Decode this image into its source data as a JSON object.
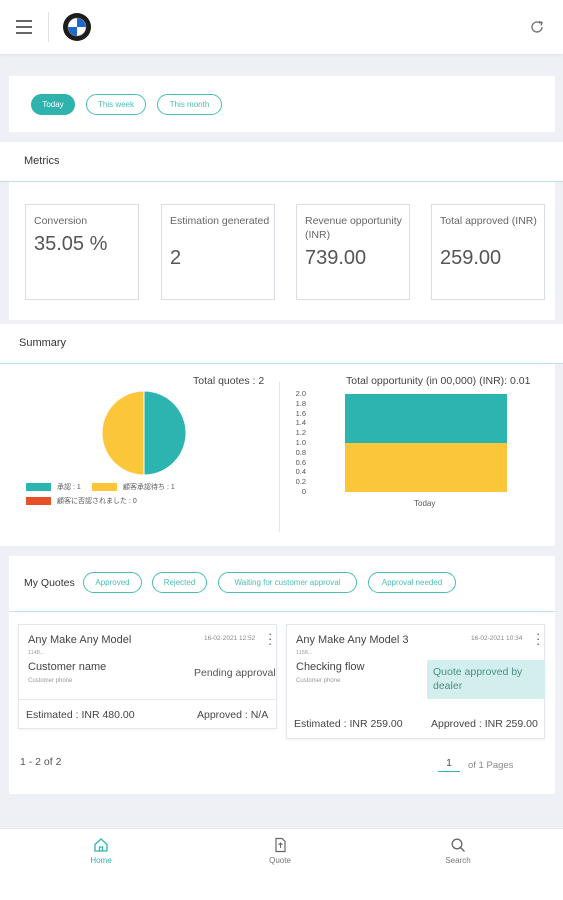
{
  "topbar": {
    "menu_icon": "hamburger-menu-icon",
    "logo_icon": "bmw-logo-icon",
    "refresh_icon": "refresh-icon"
  },
  "filters": [
    {
      "label": "Today",
      "active": true
    },
    {
      "label": "This week",
      "active": false
    },
    {
      "label": "This month",
      "active": false
    }
  ],
  "metrics": {
    "title": "Metrics",
    "items": [
      {
        "label": "Conversion",
        "value": "35.05 %"
      },
      {
        "label": "Estimation generated",
        "value": "2"
      },
      {
        "label": "Revenue opportunity (INR)",
        "value": "739.00"
      },
      {
        "label": "Total approved (INR)",
        "value": "259.00"
      }
    ]
  },
  "summary": {
    "title": "Summary",
    "total_quotes": "Total quotes : 2",
    "total_opportunity": "Total opportunity (in 00,000) (INR): 0.01",
    "legend": [
      {
        "label": "承認 : 1",
        "color": "#2cb5b0"
      },
      {
        "label": "顧客承認待ち : 1",
        "color": "#fcc63a"
      },
      {
        "label": "顧客に否認されました : 0",
        "color": "#e8502a"
      }
    ]
  },
  "chart_data": [
    {
      "type": "pie",
      "title": "Total quotes : 2",
      "slices": [
        {
          "label": "承認",
          "value": 1,
          "color": "#2cb5b0"
        },
        {
          "label": "顧客承認待ち",
          "value": 1,
          "color": "#fcc63a"
        },
        {
          "label": "顧客に否認されました",
          "value": 0,
          "color": "#e8502a"
        }
      ]
    },
    {
      "type": "bar",
      "stacked": true,
      "title": "Total opportunity (in 00,000) (INR): 0.01",
      "categories": [
        "Today"
      ],
      "yticks": [
        "2.0",
        "1.8",
        "1.6",
        "1.4",
        "1.2",
        "1.0",
        "0.8",
        "0.6",
        "0.4",
        "0.2",
        "0"
      ],
      "ylim": [
        0,
        2.0
      ],
      "series": [
        {
          "values": [
            1
          ],
          "color": "#fcc63a"
        },
        {
          "values": [
            1
          ],
          "color": "#2cb5b0"
        }
      ]
    }
  ],
  "quotes": {
    "title": "My Quotes",
    "filters": [
      "Approved",
      "Rejected",
      "Waiting for customer approval",
      "Approval needed"
    ],
    "items": [
      {
        "model": "Any Make Any Model",
        "date": "16-02-2021 12:52",
        "id": "1148...",
        "customer": "Customer name",
        "phone": "Customer phone",
        "status": "Pending approval",
        "estimated": "Estimated : INR 480.00",
        "approved": "Approved : N/A"
      },
      {
        "model": "Any Make Any Model 3",
        "date": "16-02-2021 10:34",
        "id": "1158...",
        "customer": "Checking flow",
        "phone": "Customer phone",
        "status": "Quote approved by dealer",
        "estimated": "Estimated : INR 259.00",
        "approved": "Approved : INR 259.00"
      }
    ],
    "range": "1 - 2 of 2",
    "page": "1",
    "of_pages": "of 1 Pages"
  },
  "nav": [
    {
      "label": "Home",
      "icon": "home-icon",
      "active": true
    },
    {
      "label": "Quote",
      "icon": "quote-document-icon",
      "active": false
    },
    {
      "label": "Search",
      "icon": "search-icon",
      "active": false
    }
  ]
}
